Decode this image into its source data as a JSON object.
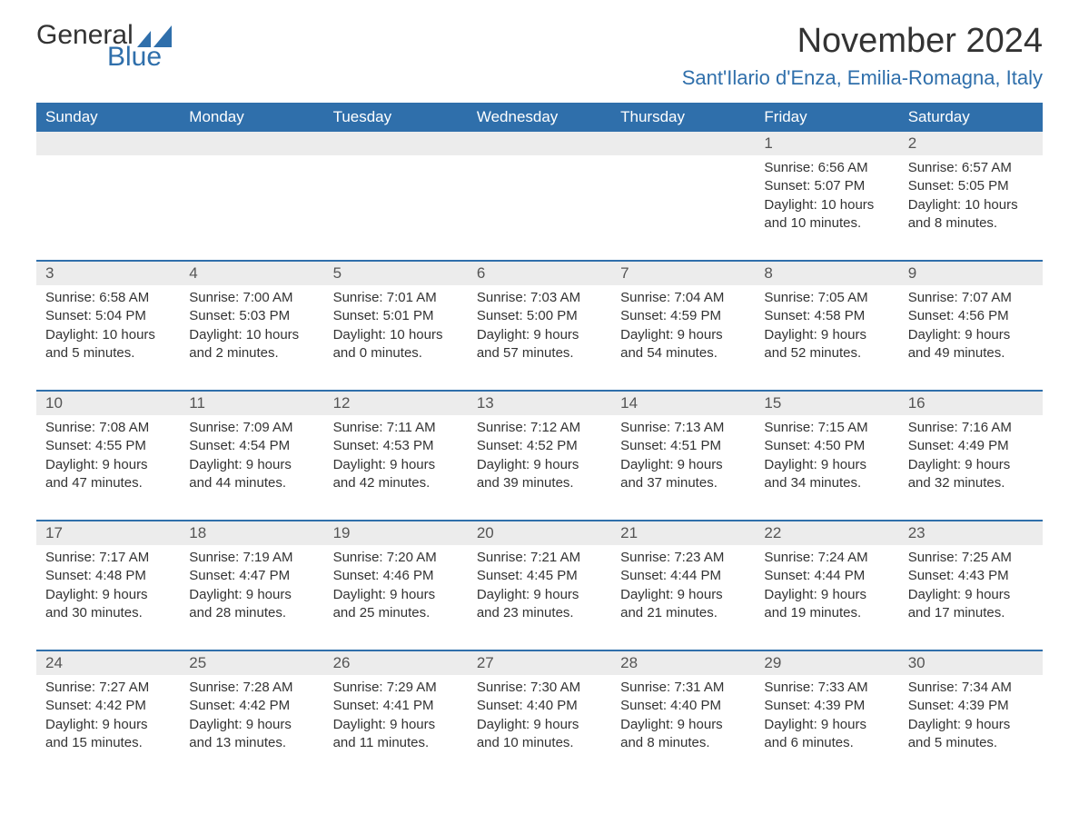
{
  "logo": {
    "word1": "General",
    "word2": "Blue",
    "word1_color": "#333333",
    "word2_color": "#2f6fab",
    "icon_color": "#2f6fab",
    "fontsize": 30
  },
  "title": {
    "month": "November 2024",
    "month_fontsize": 38,
    "month_color": "#333333",
    "location": "Sant'Ilario d'Enza, Emilia-Romagna, Italy",
    "location_fontsize": 22,
    "location_color": "#2f6fab"
  },
  "colors": {
    "header_bg": "#2f6fab",
    "header_text": "#ffffff",
    "daynum_bg": "#ececec",
    "row_border": "#2f6fab",
    "body_text": "#333333",
    "background": "#ffffff"
  },
  "calendar": {
    "columns": [
      "Sunday",
      "Monday",
      "Tuesday",
      "Wednesday",
      "Thursday",
      "Friday",
      "Saturday"
    ],
    "header_fontsize": 17,
    "cell_fontsize": 15,
    "weeks": [
      [
        null,
        null,
        null,
        null,
        null,
        {
          "day": "1",
          "sunrise": "Sunrise: 6:56 AM",
          "sunset": "Sunset: 5:07 PM",
          "daylight1": "Daylight: 10 hours",
          "daylight2": "and 10 minutes."
        },
        {
          "day": "2",
          "sunrise": "Sunrise: 6:57 AM",
          "sunset": "Sunset: 5:05 PM",
          "daylight1": "Daylight: 10 hours",
          "daylight2": "and 8 minutes."
        }
      ],
      [
        {
          "day": "3",
          "sunrise": "Sunrise: 6:58 AM",
          "sunset": "Sunset: 5:04 PM",
          "daylight1": "Daylight: 10 hours",
          "daylight2": "and 5 minutes."
        },
        {
          "day": "4",
          "sunrise": "Sunrise: 7:00 AM",
          "sunset": "Sunset: 5:03 PM",
          "daylight1": "Daylight: 10 hours",
          "daylight2": "and 2 minutes."
        },
        {
          "day": "5",
          "sunrise": "Sunrise: 7:01 AM",
          "sunset": "Sunset: 5:01 PM",
          "daylight1": "Daylight: 10 hours",
          "daylight2": "and 0 minutes."
        },
        {
          "day": "6",
          "sunrise": "Sunrise: 7:03 AM",
          "sunset": "Sunset: 5:00 PM",
          "daylight1": "Daylight: 9 hours",
          "daylight2": "and 57 minutes."
        },
        {
          "day": "7",
          "sunrise": "Sunrise: 7:04 AM",
          "sunset": "Sunset: 4:59 PM",
          "daylight1": "Daylight: 9 hours",
          "daylight2": "and 54 minutes."
        },
        {
          "day": "8",
          "sunrise": "Sunrise: 7:05 AM",
          "sunset": "Sunset: 4:58 PM",
          "daylight1": "Daylight: 9 hours",
          "daylight2": "and 52 minutes."
        },
        {
          "day": "9",
          "sunrise": "Sunrise: 7:07 AM",
          "sunset": "Sunset: 4:56 PM",
          "daylight1": "Daylight: 9 hours",
          "daylight2": "and 49 minutes."
        }
      ],
      [
        {
          "day": "10",
          "sunrise": "Sunrise: 7:08 AM",
          "sunset": "Sunset: 4:55 PM",
          "daylight1": "Daylight: 9 hours",
          "daylight2": "and 47 minutes."
        },
        {
          "day": "11",
          "sunrise": "Sunrise: 7:09 AM",
          "sunset": "Sunset: 4:54 PM",
          "daylight1": "Daylight: 9 hours",
          "daylight2": "and 44 minutes."
        },
        {
          "day": "12",
          "sunrise": "Sunrise: 7:11 AM",
          "sunset": "Sunset: 4:53 PM",
          "daylight1": "Daylight: 9 hours",
          "daylight2": "and 42 minutes."
        },
        {
          "day": "13",
          "sunrise": "Sunrise: 7:12 AM",
          "sunset": "Sunset: 4:52 PM",
          "daylight1": "Daylight: 9 hours",
          "daylight2": "and 39 minutes."
        },
        {
          "day": "14",
          "sunrise": "Sunrise: 7:13 AM",
          "sunset": "Sunset: 4:51 PM",
          "daylight1": "Daylight: 9 hours",
          "daylight2": "and 37 minutes."
        },
        {
          "day": "15",
          "sunrise": "Sunrise: 7:15 AM",
          "sunset": "Sunset: 4:50 PM",
          "daylight1": "Daylight: 9 hours",
          "daylight2": "and 34 minutes."
        },
        {
          "day": "16",
          "sunrise": "Sunrise: 7:16 AM",
          "sunset": "Sunset: 4:49 PM",
          "daylight1": "Daylight: 9 hours",
          "daylight2": "and 32 minutes."
        }
      ],
      [
        {
          "day": "17",
          "sunrise": "Sunrise: 7:17 AM",
          "sunset": "Sunset: 4:48 PM",
          "daylight1": "Daylight: 9 hours",
          "daylight2": "and 30 minutes."
        },
        {
          "day": "18",
          "sunrise": "Sunrise: 7:19 AM",
          "sunset": "Sunset: 4:47 PM",
          "daylight1": "Daylight: 9 hours",
          "daylight2": "and 28 minutes."
        },
        {
          "day": "19",
          "sunrise": "Sunrise: 7:20 AM",
          "sunset": "Sunset: 4:46 PM",
          "daylight1": "Daylight: 9 hours",
          "daylight2": "and 25 minutes."
        },
        {
          "day": "20",
          "sunrise": "Sunrise: 7:21 AM",
          "sunset": "Sunset: 4:45 PM",
          "daylight1": "Daylight: 9 hours",
          "daylight2": "and 23 minutes."
        },
        {
          "day": "21",
          "sunrise": "Sunrise: 7:23 AM",
          "sunset": "Sunset: 4:44 PM",
          "daylight1": "Daylight: 9 hours",
          "daylight2": "and 21 minutes."
        },
        {
          "day": "22",
          "sunrise": "Sunrise: 7:24 AM",
          "sunset": "Sunset: 4:44 PM",
          "daylight1": "Daylight: 9 hours",
          "daylight2": "and 19 minutes."
        },
        {
          "day": "23",
          "sunrise": "Sunrise: 7:25 AM",
          "sunset": "Sunset: 4:43 PM",
          "daylight1": "Daylight: 9 hours",
          "daylight2": "and 17 minutes."
        }
      ],
      [
        {
          "day": "24",
          "sunrise": "Sunrise: 7:27 AM",
          "sunset": "Sunset: 4:42 PM",
          "daylight1": "Daylight: 9 hours",
          "daylight2": "and 15 minutes."
        },
        {
          "day": "25",
          "sunrise": "Sunrise: 7:28 AM",
          "sunset": "Sunset: 4:42 PM",
          "daylight1": "Daylight: 9 hours",
          "daylight2": "and 13 minutes."
        },
        {
          "day": "26",
          "sunrise": "Sunrise: 7:29 AM",
          "sunset": "Sunset: 4:41 PM",
          "daylight1": "Daylight: 9 hours",
          "daylight2": "and 11 minutes."
        },
        {
          "day": "27",
          "sunrise": "Sunrise: 7:30 AM",
          "sunset": "Sunset: 4:40 PM",
          "daylight1": "Daylight: 9 hours",
          "daylight2": "and 10 minutes."
        },
        {
          "day": "28",
          "sunrise": "Sunrise: 7:31 AM",
          "sunset": "Sunset: 4:40 PM",
          "daylight1": "Daylight: 9 hours",
          "daylight2": "and 8 minutes."
        },
        {
          "day": "29",
          "sunrise": "Sunrise: 7:33 AM",
          "sunset": "Sunset: 4:39 PM",
          "daylight1": "Daylight: 9 hours",
          "daylight2": "and 6 minutes."
        },
        {
          "day": "30",
          "sunrise": "Sunrise: 7:34 AM",
          "sunset": "Sunset: 4:39 PM",
          "daylight1": "Daylight: 9 hours",
          "daylight2": "and 5 minutes."
        }
      ]
    ]
  }
}
